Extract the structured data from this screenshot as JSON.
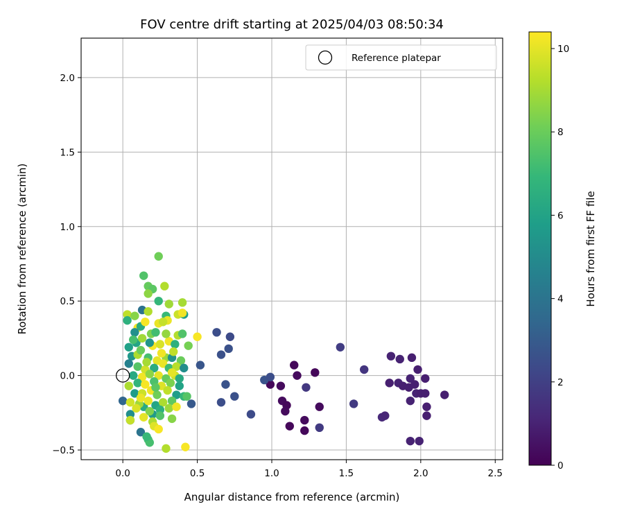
{
  "chart_data": {
    "type": "scatter",
    "title": "FOV centre drift starting at 2025/04/03 08:50:34",
    "xlabel": "Angular distance from reference (arcmin)",
    "ylabel": "Rotation from reference (arcmin)",
    "xlim": [
      -0.28,
      2.55
    ],
    "ylim": [
      -0.565,
      2.265
    ],
    "xticks": [
      0.0,
      0.5,
      1.0,
      1.5,
      2.0,
      2.5
    ],
    "xtick_labels": [
      "0.0",
      "0.5",
      "1.0",
      "1.5",
      "2.0",
      "2.5"
    ],
    "yticks": [
      -0.5,
      0.0,
      0.5,
      1.0,
      1.5,
      2.0
    ],
    "ytick_labels": [
      "−0.5",
      "0.0",
      "0.5",
      "1.0",
      "1.5",
      "2.0"
    ],
    "grid": true,
    "legend": {
      "position": "top-right",
      "entries": [
        "Reference platepar"
      ]
    },
    "reference_point": {
      "name": "Reference platepar",
      "x": 0.0,
      "y": 0.0,
      "marker": "open-circle",
      "color": "#000000"
    },
    "colorbar": {
      "label": "Hours from first FF file",
      "range": [
        0,
        10.4
      ],
      "ticks": [
        0,
        2,
        4,
        6,
        8,
        10
      ],
      "tick_labels": [
        "0",
        "2",
        "4",
        "6",
        "8",
        "10"
      ],
      "colormap": "viridis",
      "stops": [
        "#440154",
        "#482878",
        "#3e4989",
        "#31688e",
        "#26828e",
        "#1f9e89",
        "#35b779",
        "#6ece58",
        "#b5de2b",
        "#fde725"
      ]
    },
    "points": [
      {
        "x": 0.99,
        "y": -0.06,
        "c": 0.2
      },
      {
        "x": 1.06,
        "y": -0.07,
        "c": 0.3
      },
      {
        "x": 1.15,
        "y": 0.07,
        "c": 0.2
      },
      {
        "x": 1.17,
        "y": 0.0,
        "c": 0.3
      },
      {
        "x": 1.29,
        "y": 0.02,
        "c": 0.2
      },
      {
        "x": 1.07,
        "y": -0.17,
        "c": 0.3
      },
      {
        "x": 1.1,
        "y": -0.2,
        "c": 0.2
      },
      {
        "x": 1.09,
        "y": -0.24,
        "c": 0.3
      },
      {
        "x": 1.12,
        "y": -0.34,
        "c": 0.2
      },
      {
        "x": 1.22,
        "y": -0.3,
        "c": 0.3
      },
      {
        "x": 1.22,
        "y": -0.37,
        "c": 0.2
      },
      {
        "x": 1.32,
        "y": -0.21,
        "c": 0.3
      },
      {
        "x": 1.62,
        "y": 0.04,
        "c": 1.6
      },
      {
        "x": 1.46,
        "y": 0.19,
        "c": 1.9
      },
      {
        "x": 1.32,
        "y": -0.35,
        "c": 1.8
      },
      {
        "x": 1.23,
        "y": -0.08,
        "c": 1.7
      },
      {
        "x": 1.55,
        "y": -0.19,
        "c": 1.8
      },
      {
        "x": 1.74,
        "y": -0.28,
        "c": 1.2
      },
      {
        "x": 1.76,
        "y": -0.27,
        "c": 1.1
      },
      {
        "x": 1.8,
        "y": 0.13,
        "c": 1.0
      },
      {
        "x": 1.86,
        "y": 0.11,
        "c": 1.0
      },
      {
        "x": 1.94,
        "y": 0.12,
        "c": 0.9
      },
      {
        "x": 1.79,
        "y": -0.05,
        "c": 0.9
      },
      {
        "x": 1.85,
        "y": -0.05,
        "c": 1.0
      },
      {
        "x": 1.88,
        "y": -0.07,
        "c": 0.9
      },
      {
        "x": 1.92,
        "y": -0.08,
        "c": 0.9
      },
      {
        "x": 1.93,
        "y": -0.02,
        "c": 1.0
      },
      {
        "x": 1.98,
        "y": 0.04,
        "c": 0.9
      },
      {
        "x": 1.96,
        "y": -0.06,
        "c": 0.9
      },
      {
        "x": 1.97,
        "y": -0.12,
        "c": 1.0
      },
      {
        "x": 2.0,
        "y": -0.12,
        "c": 0.9
      },
      {
        "x": 2.03,
        "y": -0.12,
        "c": 0.9
      },
      {
        "x": 2.03,
        "y": -0.02,
        "c": 0.9
      },
      {
        "x": 2.04,
        "y": -0.21,
        "c": 0.9
      },
      {
        "x": 2.04,
        "y": -0.27,
        "c": 0.9
      },
      {
        "x": 2.16,
        "y": -0.13,
        "c": 0.9
      },
      {
        "x": 1.93,
        "y": -0.17,
        "c": 1.0
      },
      {
        "x": 1.93,
        "y": -0.44,
        "c": 1.0
      },
      {
        "x": 1.99,
        "y": -0.44,
        "c": 1.0
      },
      {
        "x": 0.63,
        "y": 0.29,
        "c": 2.5
      },
      {
        "x": 0.66,
        "y": 0.14,
        "c": 2.6
      },
      {
        "x": 0.72,
        "y": 0.26,
        "c": 2.4
      },
      {
        "x": 0.71,
        "y": 0.18,
        "c": 2.6
      },
      {
        "x": 0.52,
        "y": 0.07,
        "c": 2.8
      },
      {
        "x": 0.69,
        "y": -0.06,
        "c": 2.7
      },
      {
        "x": 0.66,
        "y": -0.18,
        "c": 2.5
      },
      {
        "x": 0.75,
        "y": -0.14,
        "c": 2.6
      },
      {
        "x": 0.86,
        "y": -0.26,
        "c": 2.4
      },
      {
        "x": 0.95,
        "y": -0.03,
        "c": 2.7
      },
      {
        "x": 0.99,
        "y": -0.01,
        "c": 2.5
      },
      {
        "x": 0.46,
        "y": -0.19,
        "c": 2.9
      },
      {
        "x": 0.0,
        "y": -0.17,
        "c": 3.4
      },
      {
        "x": 0.05,
        "y": -0.3,
        "c": 4.3
      },
      {
        "x": 0.05,
        "y": -0.26,
        "c": 5.1
      },
      {
        "x": 0.12,
        "y": -0.38,
        "c": 4.0
      },
      {
        "x": 0.17,
        "y": -0.43,
        "c": 7.2
      },
      {
        "x": 0.18,
        "y": -0.45,
        "c": 7.3
      },
      {
        "x": 0.14,
        "y": -0.21,
        "c": 6.3
      },
      {
        "x": 0.2,
        "y": -0.26,
        "c": 5.6
      },
      {
        "x": 0.13,
        "y": 0.44,
        "c": 3.9
      },
      {
        "x": 0.14,
        "y": 0.67,
        "c": 7.5
      },
      {
        "x": 0.17,
        "y": 0.6,
        "c": 7.9
      },
      {
        "x": 0.2,
        "y": 0.58,
        "c": 7.7
      },
      {
        "x": 0.24,
        "y": 0.8,
        "c": 8.1
      },
      {
        "x": 0.17,
        "y": 0.55,
        "c": 8.6
      },
      {
        "x": 0.28,
        "y": 0.6,
        "c": 9.2
      },
      {
        "x": 0.24,
        "y": 0.5,
        "c": 6.9
      },
      {
        "x": 0.31,
        "y": 0.48,
        "c": 8.9
      },
      {
        "x": 0.4,
        "y": 0.49,
        "c": 9.0
      },
      {
        "x": 0.03,
        "y": 0.41,
        "c": 9.4
      },
      {
        "x": 0.03,
        "y": 0.37,
        "c": 6.6
      },
      {
        "x": 0.08,
        "y": 0.4,
        "c": 8.5
      },
      {
        "x": 0.17,
        "y": 0.43,
        "c": 9.2
      },
      {
        "x": 0.29,
        "y": 0.4,
        "c": 7.0
      },
      {
        "x": 0.3,
        "y": 0.37,
        "c": 10.1
      },
      {
        "x": 0.37,
        "y": 0.41,
        "c": 9.6
      },
      {
        "x": 0.41,
        "y": 0.41,
        "c": 5.8
      },
      {
        "x": 0.4,
        "y": 0.42,
        "c": 10.2
      },
      {
        "x": 0.1,
        "y": 0.32,
        "c": 10.2
      },
      {
        "x": 0.12,
        "y": 0.33,
        "c": 6.4
      },
      {
        "x": 0.15,
        "y": 0.36,
        "c": 10.3
      },
      {
        "x": 0.24,
        "y": 0.35,
        "c": 10.1
      },
      {
        "x": 0.27,
        "y": 0.36,
        "c": 9.5
      },
      {
        "x": 0.08,
        "y": 0.29,
        "c": 5.2
      },
      {
        "x": 0.19,
        "y": 0.28,
        "c": 8.3
      },
      {
        "x": 0.22,
        "y": 0.29,
        "c": 7.2
      },
      {
        "x": 0.37,
        "y": 0.27,
        "c": 9.2
      },
      {
        "x": 0.4,
        "y": 0.28,
        "c": 7.5
      },
      {
        "x": 0.5,
        "y": 0.26,
        "c": 10.3
      },
      {
        "x": 0.44,
        "y": 0.2,
        "c": 8.2
      },
      {
        "x": 0.04,
        "y": 0.19,
        "c": 5.9
      },
      {
        "x": 0.09,
        "y": 0.22,
        "c": 6.1
      },
      {
        "x": 0.13,
        "y": 0.25,
        "c": 8.9
      },
      {
        "x": 0.2,
        "y": 0.2,
        "c": 10.3
      },
      {
        "x": 0.25,
        "y": 0.21,
        "c": 9.8
      },
      {
        "x": 0.31,
        "y": 0.23,
        "c": 10.2
      },
      {
        "x": 0.35,
        "y": 0.21,
        "c": 6.6
      },
      {
        "x": 0.06,
        "y": 0.13,
        "c": 5.5
      },
      {
        "x": 0.1,
        "y": 0.14,
        "c": 9.1
      },
      {
        "x": 0.17,
        "y": 0.12,
        "c": 7.3
      },
      {
        "x": 0.23,
        "y": 0.1,
        "c": 10.0
      },
      {
        "x": 0.29,
        "y": 0.12,
        "c": 8.8
      },
      {
        "x": 0.33,
        "y": 0.12,
        "c": 5.3
      },
      {
        "x": 0.39,
        "y": 0.1,
        "c": 8.0
      },
      {
        "x": 0.04,
        "y": 0.08,
        "c": 4.6
      },
      {
        "x": 0.1,
        "y": 0.06,
        "c": 7.6
      },
      {
        "x": 0.15,
        "y": 0.04,
        "c": 9.7
      },
      {
        "x": 0.21,
        "y": 0.05,
        "c": 6.4
      },
      {
        "x": 0.27,
        "y": 0.08,
        "c": 10.1
      },
      {
        "x": 0.31,
        "y": 0.05,
        "c": 7.1
      },
      {
        "x": 0.36,
        "y": 0.06,
        "c": 9.3
      },
      {
        "x": 0.41,
        "y": 0.05,
        "c": 5.1
      },
      {
        "x": 0.07,
        "y": 0.0,
        "c": 6.3
      },
      {
        "x": 0.13,
        "y": -0.01,
        "c": 10.2
      },
      {
        "x": 0.18,
        "y": 0.01,
        "c": 8.6
      },
      {
        "x": 0.24,
        "y": 0.0,
        "c": 10.0
      },
      {
        "x": 0.29,
        "y": -0.02,
        "c": 7.9
      },
      {
        "x": 0.35,
        "y": 0.0,
        "c": 9.6
      },
      {
        "x": 0.04,
        "y": -0.07,
        "c": 9.1
      },
      {
        "x": 0.1,
        "y": -0.05,
        "c": 6.8
      },
      {
        "x": 0.15,
        "y": -0.06,
        "c": 10.3
      },
      {
        "x": 0.21,
        "y": -0.04,
        "c": 7.4
      },
      {
        "x": 0.26,
        "y": -0.07,
        "c": 9.9
      },
      {
        "x": 0.32,
        "y": -0.05,
        "c": 8.3
      },
      {
        "x": 0.38,
        "y": -0.07,
        "c": 6.0
      },
      {
        "x": 0.08,
        "y": -0.12,
        "c": 5.7
      },
      {
        "x": 0.13,
        "y": -0.12,
        "c": 9.6
      },
      {
        "x": 0.19,
        "y": -0.1,
        "c": 10.2
      },
      {
        "x": 0.23,
        "y": -0.13,
        "c": 8.1
      },
      {
        "x": 0.3,
        "y": -0.1,
        "c": 9.4
      },
      {
        "x": 0.36,
        "y": -0.13,
        "c": 5.8
      },
      {
        "x": 0.41,
        "y": -0.14,
        "c": 6.9
      },
      {
        "x": 0.05,
        "y": -0.18,
        "c": 9.7
      },
      {
        "x": 0.11,
        "y": -0.19,
        "c": 8.9
      },
      {
        "x": 0.17,
        "y": -0.17,
        "c": 10.1
      },
      {
        "x": 0.22,
        "y": -0.2,
        "c": 6.1
      },
      {
        "x": 0.27,
        "y": -0.18,
        "c": 9.1
      },
      {
        "x": 0.33,
        "y": -0.17,
        "c": 7.8
      },
      {
        "x": 0.43,
        "y": -0.14,
        "c": 7.6
      },
      {
        "x": 0.09,
        "y": -0.22,
        "c": 9.8
      },
      {
        "x": 0.18,
        "y": -0.24,
        "c": 8.4
      },
      {
        "x": 0.25,
        "y": -0.23,
        "c": 6.6
      },
      {
        "x": 0.31,
        "y": -0.22,
        "c": 8.8
      },
      {
        "x": 0.36,
        "y": -0.21,
        "c": 10.2
      },
      {
        "x": 0.05,
        "y": -0.3,
        "c": 9.5
      },
      {
        "x": 0.14,
        "y": -0.28,
        "c": 10.0
      },
      {
        "x": 0.2,
        "y": -0.31,
        "c": 9.1
      },
      {
        "x": 0.25,
        "y": -0.27,
        "c": 7.5
      },
      {
        "x": 0.33,
        "y": -0.29,
        "c": 8.5
      },
      {
        "x": 0.21,
        "y": -0.34,
        "c": 9.9
      },
      {
        "x": 0.24,
        "y": -0.36,
        "c": 10.3
      },
      {
        "x": 0.16,
        "y": -0.41,
        "c": 7.0
      },
      {
        "x": 0.29,
        "y": -0.49,
        "c": 9.2
      },
      {
        "x": 0.42,
        "y": -0.48,
        "c": 10.3
      },
      {
        "x": 0.12,
        "y": 0.17,
        "c": 8.0
      },
      {
        "x": 0.26,
        "y": 0.15,
        "c": 10.2
      },
      {
        "x": 0.34,
        "y": 0.16,
        "c": 9.4
      },
      {
        "x": 0.18,
        "y": 0.22,
        "c": 5.4
      },
      {
        "x": 0.29,
        "y": 0.28,
        "c": 8.7
      },
      {
        "x": 0.07,
        "y": 0.24,
        "c": 7.3
      },
      {
        "x": 0.33,
        "y": 0.02,
        "c": 10.0
      },
      {
        "x": 0.16,
        "y": 0.09,
        "c": 9.0
      },
      {
        "x": 0.22,
        "y": -0.08,
        "c": 7.7
      },
      {
        "x": 0.12,
        "y": -0.15,
        "c": 10.1
      },
      {
        "x": 0.38,
        "y": -0.02,
        "c": 6.3
      }
    ]
  }
}
